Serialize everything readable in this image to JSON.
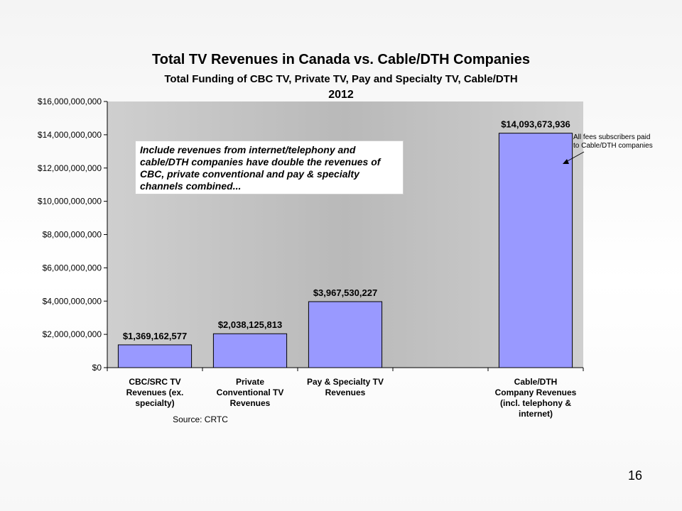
{
  "chart_data": {
    "type": "bar",
    "title": "Total TV Revenues in Canada vs. Cable/DTH Companies",
    "subtitle": "Total Funding of CBC TV, Private TV,  Pay and Specialty TV, Cable/DTH",
    "year": "2012",
    "categories": [
      [
        "CBC/SRC TV",
        "Revenues (ex.",
        "specialty)"
      ],
      [
        "Private",
        "Conventional TV",
        "Revenues"
      ],
      [
        "Pay & Specialty TV",
        "Revenues"
      ],
      [],
      [
        "Cable/DTH",
        "Company Revenues",
        "(incl. telephony &",
        "internet)"
      ]
    ],
    "values": [
      1369162577,
      2038125813,
      3967530227,
      null,
      14093673936
    ],
    "data_labels": [
      "$1,369,162,577",
      "$2,038,125,813",
      "$3,967,530,227",
      "",
      "$14,093,673,936"
    ],
    "ylim": [
      0,
      16000000000
    ],
    "yticks": [
      "$0",
      "$2,000,000,000",
      "$4,000,000,000",
      "$6,000,000,000",
      "$8,000,000,000",
      "$10,000,000,000",
      "$12,000,000,000",
      "$14,000,000,000",
      "$16,000,000,000"
    ],
    "grid": false,
    "bar_color": "#9999ff",
    "plot_background": "#c0c0c0",
    "source": "Source: CRTC",
    "callout_note": [
      "All fees subscribers paid",
      "to Cable/DTH companies"
    ],
    "annotation": "Include revenues from internet/telephony and cable/DTH companies have double the revenues of CBC, private conventional and pay & specialty channels combined..."
  },
  "page_number": "16"
}
